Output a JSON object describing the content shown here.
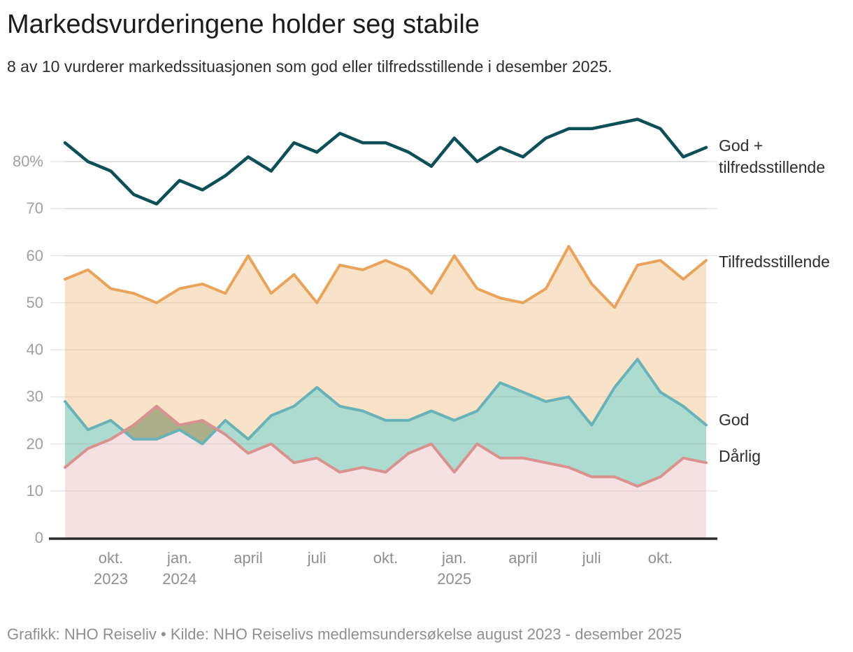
{
  "header": {
    "title": "Markedsvurderingene holder seg stabile",
    "subtitle": "8 av 10 vurderer markedssituasjonen som god eller tilfredsstillende i desember 2025."
  },
  "footer": {
    "text": "Grafikk: NHO Reiseliv • Kilde: NHO Reiselivs medlemsundersøkelse august 2023 - desember 2025"
  },
  "legend": {
    "god_tilfredsstillende": "God + tilfredsstillende",
    "tilfredsstillende": "Tilfredsstillende",
    "god": "God",
    "darlig": "Dårlig"
  },
  "colors": {
    "god_tilfredsstillende_line": "#0d4f56",
    "tilfredsstillende_line": "#e8a45c",
    "tilfredsstillende_fill": "#f8e3c9",
    "god_line": "#68b2b8",
    "god_fill": "#aedbd0",
    "darlig_line": "#d8928f",
    "darlig_fill": "#f5e0e2",
    "overlap_fill": "#abae88",
    "gridline": "#e7e7e7",
    "axis": "#2b2b2b"
  },
  "chart_data": {
    "type": "area",
    "title": "Markedsvurderingene holder seg stabile",
    "xlabel": "",
    "ylabel": "",
    "ylim": [
      0,
      92
    ],
    "grid": true,
    "legend_position": "right",
    "x": [
      "aug. 2023",
      "sep. 2023",
      "okt. 2023",
      "nov. 2023",
      "des. 2023",
      "jan. 2024",
      "feb. 2024",
      "mars 2024",
      "april 2024",
      "mai 2024",
      "juni 2024",
      "juli 2024",
      "aug. 2024",
      "sep. 2024",
      "okt. 2024",
      "nov. 2024",
      "des. 2024",
      "jan. 2025",
      "feb. 2025",
      "mars 2025",
      "april 2025",
      "mai 2025",
      "juni 2025",
      "juli 2025",
      "aug. 2025",
      "sep. 2025",
      "okt. 2025",
      "nov. 2025",
      "des. 2025"
    ],
    "series": [
      {
        "name": "God + tilfredsstillende",
        "kind": "line",
        "color": "#0d4f56",
        "values": [
          84,
          80,
          78,
          73,
          71,
          76,
          74,
          77,
          81,
          78,
          84,
          82,
          86,
          84,
          84,
          82,
          79,
          85,
          80,
          83,
          81,
          85,
          87,
          87,
          88,
          89,
          87,
          81,
          83
        ]
      },
      {
        "name": "Tilfredsstillende",
        "kind": "area",
        "color": "#e8a45c",
        "fill": "#f8e3c9",
        "values": [
          55,
          57,
          53,
          52,
          50,
          53,
          54,
          52,
          60,
          52,
          56,
          50,
          58,
          57,
          59,
          57,
          52,
          60,
          53,
          51,
          50,
          53,
          62,
          54,
          49,
          58,
          59,
          55,
          59
        ]
      },
      {
        "name": "God",
        "kind": "area",
        "color": "#68b2b8",
        "fill": "#aedbd0",
        "values": [
          29,
          23,
          25,
          21,
          21,
          23,
          20,
          25,
          21,
          26,
          28,
          32,
          28,
          27,
          25,
          25,
          27,
          25,
          27,
          33,
          31,
          29,
          30,
          24,
          32,
          38,
          31,
          28,
          24
        ]
      },
      {
        "name": "Dårlig",
        "kind": "area",
        "color": "#d8928f",
        "fill": "#f5e0e2",
        "values": [
          15,
          19,
          21,
          24,
          28,
          24,
          25,
          22,
          18,
          20,
          16,
          17,
          14,
          15,
          14,
          18,
          20,
          14,
          20,
          17,
          17,
          16,
          15,
          13,
          13,
          11,
          13,
          17,
          16
        ]
      }
    ],
    "y_ticks": [
      {
        "value": 0,
        "label": "0"
      },
      {
        "value": 10,
        "label": "10"
      },
      {
        "value": 20,
        "label": "20"
      },
      {
        "value": 30,
        "label": "30"
      },
      {
        "value": 40,
        "label": "40"
      },
      {
        "value": 50,
        "label": "50"
      },
      {
        "value": 60,
        "label": "60"
      },
      {
        "value": 70,
        "label": "70"
      },
      {
        "value": 80,
        "label": "80%"
      }
    ],
    "x_ticks": [
      {
        "index": 2,
        "label": "okt.",
        "year": "2023"
      },
      {
        "index": 5,
        "label": "jan.",
        "year": "2024"
      },
      {
        "index": 8,
        "label": "april",
        "year": ""
      },
      {
        "index": 11,
        "label": "juli",
        "year": ""
      },
      {
        "index": 14,
        "label": "okt.",
        "year": ""
      },
      {
        "index": 17,
        "label": "jan.",
        "year": "2025"
      },
      {
        "index": 20,
        "label": "april",
        "year": ""
      },
      {
        "index": 23,
        "label": "juli",
        "year": ""
      },
      {
        "index": 26,
        "label": "okt.",
        "year": ""
      }
    ]
  }
}
